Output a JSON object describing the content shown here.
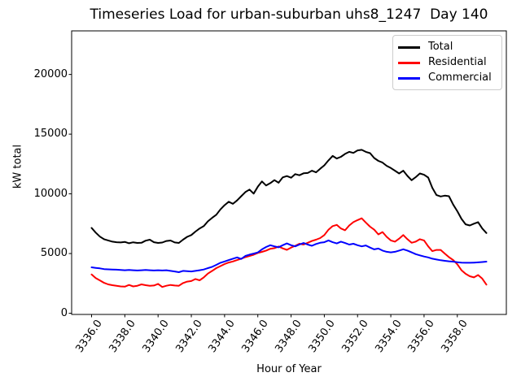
{
  "title": "Timeseries Load for urban-suburban uhs8_1247  Day 140",
  "chart_data": {
    "type": "line",
    "title": "Timeseries Load for urban-suburban uhs8_1247  Day 140",
    "xlabel": "Hour of Year",
    "ylabel": "kW total",
    "xlim": [
      3334.8,
      3360.95
    ],
    "ylim": [
      -100,
      23650
    ],
    "grid": false,
    "legend_position": "upper right",
    "x_ticks": [
      {
        "value": 3336,
        "label": "3336.0"
      },
      {
        "value": 3338,
        "label": "3338.0"
      },
      {
        "value": 3340,
        "label": "3340.0"
      },
      {
        "value": 3342,
        "label": "3342.0"
      },
      {
        "value": 3344,
        "label": "3344.0"
      },
      {
        "value": 3346,
        "label": "3346.0"
      },
      {
        "value": 3348,
        "label": "3348.0"
      },
      {
        "value": 3350,
        "label": "3350.0"
      },
      {
        "value": 3352,
        "label": "3352.0"
      },
      {
        "value": 3354,
        "label": "3354.0"
      },
      {
        "value": 3356,
        "label": "3356.0"
      },
      {
        "value": 3358,
        "label": "3358.0"
      }
    ],
    "y_ticks": [
      {
        "value": 0,
        "label": "0"
      },
      {
        "value": 5000,
        "label": "5000"
      },
      {
        "value": 10000,
        "label": "10000"
      },
      {
        "value": 15000,
        "label": "15000"
      },
      {
        "value": 20000,
        "label": "20000"
      }
    ],
    "x_start": 3336.0,
    "x_step": 0.25,
    "series": [
      {
        "name": "Total",
        "color": "#000000",
        "values": [
          7150,
          6750,
          6420,
          6200,
          6100,
          6000,
          5950,
          5930,
          5980,
          5860,
          5940,
          5890,
          5900,
          6080,
          6160,
          5950,
          5890,
          5920,
          6050,
          6090,
          5930,
          5890,
          6160,
          6400,
          6550,
          6840,
          7100,
          7300,
          7700,
          7990,
          8250,
          8700,
          9050,
          9340,
          9160,
          9450,
          9800,
          10150,
          10360,
          10020,
          10600,
          11040,
          10700,
          10900,
          11150,
          10930,
          11380,
          11490,
          11350,
          11650,
          11560,
          11720,
          11750,
          11940,
          11800,
          12100,
          12390,
          12800,
          13180,
          12960,
          13100,
          13350,
          13520,
          13430,
          13640,
          13690,
          13520,
          13410,
          13000,
          12760,
          12620,
          12350,
          12160,
          11940,
          11710,
          11940,
          11500,
          11140,
          11400,
          11710,
          11600,
          11370,
          10500,
          9900,
          9780,
          9850,
          9800,
          9100,
          8540,
          7900,
          7450,
          7350,
          7500,
          7630,
          7100,
          6720
        ]
      },
      {
        "name": "Residential",
        "color": "#ff0000",
        "values": [
          3250,
          2950,
          2750,
          2550,
          2420,
          2350,
          2300,
          2250,
          2230,
          2370,
          2250,
          2300,
          2420,
          2350,
          2300,
          2320,
          2460,
          2200,
          2300,
          2370,
          2320,
          2300,
          2530,
          2650,
          2700,
          2870,
          2760,
          3000,
          3320,
          3550,
          3780,
          3950,
          4120,
          4250,
          4340,
          4450,
          4570,
          4700,
          4800,
          4900,
          5050,
          5140,
          5250,
          5400,
          5450,
          5590,
          5430,
          5310,
          5500,
          5650,
          5820,
          5750,
          5900,
          6050,
          6160,
          6300,
          6550,
          7000,
          7300,
          7400,
          7100,
          6950,
          7350,
          7630,
          7800,
          7950,
          7600,
          7250,
          7000,
          6600,
          6800,
          6400,
          6100,
          6000,
          6250,
          6550,
          6200,
          5900,
          6000,
          6200,
          6100,
          5600,
          5200,
          5300,
          5300,
          5000,
          4700,
          4450,
          4100,
          3600,
          3300,
          3100,
          3000,
          3200,
          2900,
          2400
        ]
      },
      {
        "name": "Commercial",
        "color": "#0000ff",
        "values": [
          3850,
          3800,
          3760,
          3700,
          3680,
          3660,
          3650,
          3630,
          3600,
          3630,
          3600,
          3580,
          3600,
          3630,
          3600,
          3580,
          3600,
          3580,
          3600,
          3550,
          3500,
          3440,
          3550,
          3520,
          3500,
          3550,
          3600,
          3660,
          3780,
          3890,
          4050,
          4230,
          4340,
          4450,
          4570,
          4680,
          4550,
          4800,
          4910,
          5000,
          5090,
          5350,
          5550,
          5700,
          5600,
          5520,
          5700,
          5850,
          5700,
          5600,
          5750,
          5880,
          5750,
          5650,
          5800,
          5900,
          5950,
          6100,
          5950,
          5850,
          6000,
          5880,
          5750,
          5820,
          5700,
          5600,
          5680,
          5500,
          5350,
          5420,
          5250,
          5150,
          5100,
          5150,
          5250,
          5360,
          5250,
          5100,
          4950,
          4850,
          4750,
          4680,
          4570,
          4500,
          4440,
          4390,
          4350,
          4320,
          4270,
          4240,
          4230,
          4230,
          4240,
          4260,
          4290,
          4320
        ]
      }
    ]
  }
}
